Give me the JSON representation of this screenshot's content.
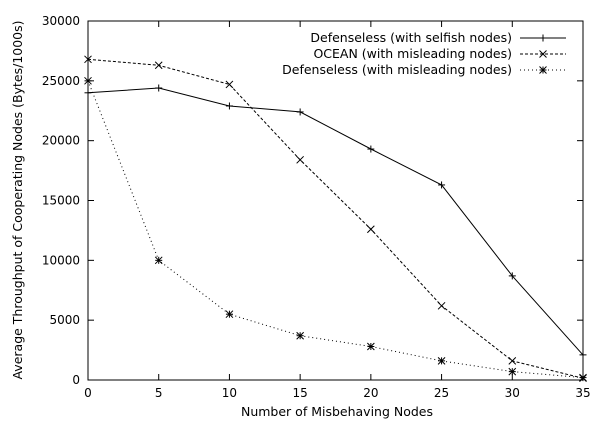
{
  "chart_data": {
    "type": "line",
    "title": "",
    "xlabel": "Number of Misbehaving Nodes",
    "ylabel": "Average Throughput of Cooperating Nodes (Bytes/1000s)",
    "xlim": [
      0,
      35
    ],
    "ylim": [
      0,
      30000
    ],
    "xticks": [
      0,
      5,
      10,
      15,
      20,
      25,
      30,
      35
    ],
    "yticks": [
      0,
      5000,
      10000,
      15000,
      20000,
      25000,
      30000
    ],
    "grid": false,
    "legend_position": "top-right",
    "series": [
      {
        "name": "Defenseless (with selfish nodes)",
        "line_style": "solid",
        "marker": "plus",
        "x": [
          0,
          5,
          10,
          15,
          20,
          25,
          30,
          35
        ],
        "y": [
          24000,
          24400,
          22900,
          22400,
          19300,
          16300,
          8700,
          2100
        ]
      },
      {
        "name": "OCEAN (with misleading nodes)",
        "line_style": "dashed",
        "marker": "cross",
        "x": [
          0,
          5,
          10,
          15,
          20,
          25,
          30,
          35
        ],
        "y": [
          26800,
          26300,
          24700,
          18400,
          12600,
          6200,
          1600,
          150
        ]
      },
      {
        "name": "Defenseless (with misleading nodes)",
        "line_style": "dotted",
        "marker": "star",
        "x": [
          0,
          5,
          10,
          15,
          20,
          25,
          30,
          35
        ],
        "y": [
          25000,
          10000,
          5500,
          3700,
          2800,
          1600,
          700,
          200
        ]
      }
    ]
  }
}
